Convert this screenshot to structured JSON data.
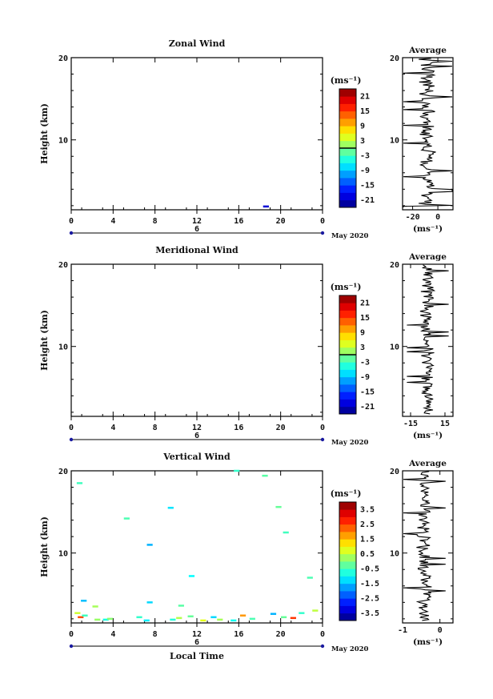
{
  "figure": {
    "date_label": "May 2020",
    "day_label": "6",
    "xlabel_bottom": "Local Time",
    "unit_label": "(ms⁻¹)"
  },
  "chart_data": [
    {
      "type": "heatmap",
      "title": "Zonal Wind",
      "ylabel": "Height (km)",
      "xlabel": "",
      "xlim": [
        0,
        24
      ],
      "ylim": [
        1.5,
        20
      ],
      "x_ticks": [
        "0",
        "4",
        "8",
        "12",
        "16",
        "20",
        "0"
      ],
      "y_ticks": [
        "10",
        "20"
      ],
      "colorbar": {
        "range": [
          -24,
          24
        ],
        "ticks": [
          "21",
          "15",
          "9",
          "3",
          "-3",
          "-9",
          "-15",
          "-21"
        ],
        "unit": "(ms⁻¹)"
      },
      "cells": [
        {
          "x": 18.6,
          "y": 1.9,
          "v": -20
        }
      ]
    },
    {
      "type": "heatmap",
      "title": "Meridional Wind",
      "ylabel": "Height (km)",
      "xlabel": "",
      "xlim": [
        0,
        24
      ],
      "ylim": [
        1.5,
        20
      ],
      "x_ticks": [
        "0",
        "4",
        "8",
        "12",
        "16",
        "20",
        "0"
      ],
      "y_ticks": [
        "10",
        "20"
      ],
      "colorbar": {
        "range": [
          -24,
          24
        ],
        "ticks": [
          "21",
          "15",
          "9",
          "3",
          "-3",
          "-9",
          "-15",
          "-21"
        ],
        "unit": "(ms⁻¹)"
      },
      "cells": []
    },
    {
      "type": "heatmap",
      "title": "Vertical Wind",
      "ylabel": "Height (km)",
      "xlabel": "Local Time",
      "xlim": [
        0,
        24
      ],
      "ylim": [
        1.5,
        20
      ],
      "x_ticks": [
        "0",
        "4",
        "8",
        "12",
        "16",
        "20",
        "0"
      ],
      "y_ticks": [
        "10",
        "20"
      ],
      "colorbar": {
        "range": [
          -4,
          4
        ],
        "ticks": [
          "3.5",
          "2.5",
          "1.5",
          "0.5",
          "-0.5",
          "-1.5",
          "-2.5",
          "-3.5"
        ],
        "unit": "(ms⁻¹)"
      },
      "cells": [
        {
          "x": 0.8,
          "y": 18.5,
          "v": -0.5
        },
        {
          "x": 9.5,
          "y": 15.5,
          "v": -1.2
        },
        {
          "x": 5.3,
          "y": 14.2,
          "v": -0.4
        },
        {
          "x": 7.5,
          "y": 11.0,
          "v": -1.6
        },
        {
          "x": 11.5,
          "y": 7.2,
          "v": -1.0
        },
        {
          "x": 15.8,
          "y": 20.0,
          "v": -0.6
        },
        {
          "x": 18.5,
          "y": 19.4,
          "v": -0.3
        },
        {
          "x": 19.8,
          "y": 15.6,
          "v": -0.2
        },
        {
          "x": 20.5,
          "y": 12.5,
          "v": -0.5
        },
        {
          "x": 22.8,
          "y": 7.0,
          "v": -0.4
        },
        {
          "x": 1.2,
          "y": 4.2,
          "v": -1.5
        },
        {
          "x": 7.5,
          "y": 4.0,
          "v": -1.3
        },
        {
          "x": 2.3,
          "y": 3.5,
          "v": 0.3
        },
        {
          "x": 10.5,
          "y": 3.6,
          "v": -0.3
        },
        {
          "x": 0.6,
          "y": 2.7,
          "v": 0.6
        },
        {
          "x": 0.9,
          "y": 2.2,
          "v": 2.4
        },
        {
          "x": 1.3,
          "y": 2.4,
          "v": -0.5
        },
        {
          "x": 2.5,
          "y": 1.9,
          "v": 0.2
        },
        {
          "x": 3.3,
          "y": 1.9,
          "v": -0.8
        },
        {
          "x": 3.7,
          "y": 2.0,
          "v": 0.1
        },
        {
          "x": 6.5,
          "y": 2.2,
          "v": -0.6
        },
        {
          "x": 7.2,
          "y": 1.8,
          "v": -1.1
        },
        {
          "x": 9.7,
          "y": 1.9,
          "v": -0.7
        },
        {
          "x": 10.3,
          "y": 2.1,
          "v": 0.4
        },
        {
          "x": 11.4,
          "y": 2.3,
          "v": -0.2
        },
        {
          "x": 12.6,
          "y": 1.8,
          "v": 0.8
        },
        {
          "x": 13.6,
          "y": 2.2,
          "v": -1.3
        },
        {
          "x": 14.2,
          "y": 1.9,
          "v": 0.3
        },
        {
          "x": 15.5,
          "y": 1.8,
          "v": -0.9
        },
        {
          "x": 16.4,
          "y": 2.4,
          "v": 1.8
        },
        {
          "x": 17.3,
          "y": 2.0,
          "v": -0.4
        },
        {
          "x": 19.3,
          "y": 2.6,
          "v": -1.6
        },
        {
          "x": 20.3,
          "y": 2.2,
          "v": -0.2
        },
        {
          "x": 21.2,
          "y": 2.1,
          "v": 2.6
        },
        {
          "x": 22.0,
          "y": 2.7,
          "v": -0.6
        },
        {
          "x": 23.3,
          "y": 3.0,
          "v": 0.5
        }
      ]
    },
    {
      "type": "line",
      "title": "Average",
      "xlabel": "(ms⁻¹)",
      "xlim": [
        -28,
        12
      ],
      "x_ticks": [
        "-20",
        "0"
      ],
      "x_tick_values": [
        -20,
        0
      ],
      "ylim": [
        1.5,
        20
      ],
      "y_ticks": [
        "10",
        "20"
      ],
      "amplitude": 8,
      "center": -8,
      "seed": 3
    },
    {
      "type": "line",
      "title": "Average",
      "xlabel": "(ms⁻¹)",
      "xlim": [
        -22,
        22
      ],
      "x_ticks": [
        "-15",
        "15"
      ],
      "x_tick_values": [
        -15,
        15
      ],
      "ylim": [
        1.5,
        20
      ],
      "y_ticks": [
        "10",
        "20"
      ],
      "amplitude": 7,
      "center": 0,
      "seed": 11
    },
    {
      "type": "line",
      "title": "Average",
      "xlabel": "(ms⁻¹)",
      "xlim": [
        -1,
        0.35
      ],
      "x_ticks": [
        "-1",
        "0"
      ],
      "x_tick_values": [
        -1,
        0
      ],
      "ylim": [
        1.5,
        20
      ],
      "y_ticks": [
        "10",
        "20"
      ],
      "amplitude": 0.22,
      "center": -0.42,
      "seed": 29
    }
  ]
}
